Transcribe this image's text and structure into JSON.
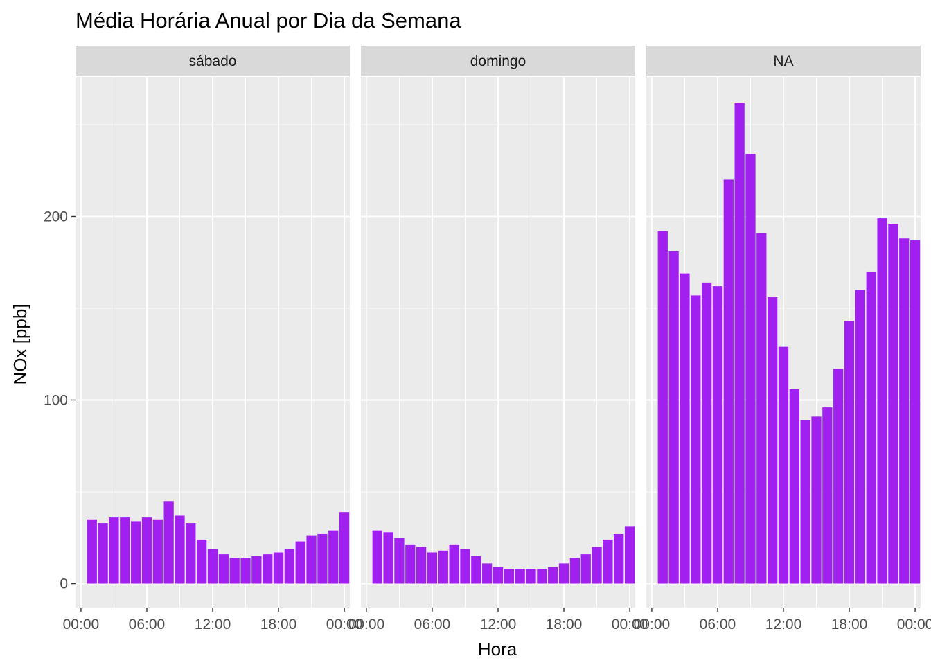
{
  "chart_data": {
    "type": "bar",
    "title": "Média Horária Anual por Dia da Semana",
    "xlabel": "Hora",
    "ylabel": "NOx [ppb]",
    "bar_color": "#A020F0",
    "panel_background": "#EBEBEB",
    "strip_background": "#D9D9D9",
    "grid": true,
    "legend": "none",
    "xlim": [
      -0.5,
      24.5
    ],
    "ylim": [
      -13,
      276
    ],
    "x_ticks": [
      {
        "value": 0,
        "label": "00:00"
      },
      {
        "value": 6,
        "label": "06:00"
      },
      {
        "value": 12,
        "label": "12:00"
      },
      {
        "value": 18,
        "label": "18:00"
      },
      {
        "value": 24,
        "label": "00:00"
      }
    ],
    "y_ticks": [
      {
        "value": 0,
        "label": "0"
      },
      {
        "value": 100,
        "label": "100"
      },
      {
        "value": 200,
        "label": "200"
      }
    ],
    "x": [
      1,
      2,
      3,
      4,
      5,
      6,
      7,
      8,
      9,
      10,
      11,
      12,
      13,
      14,
      15,
      16,
      17,
      18,
      19,
      20,
      21,
      22,
      23,
      24
    ],
    "panels": [
      {
        "name": "sábado",
        "values": [
          35,
          33,
          36,
          36,
          34,
          36,
          35,
          45,
          37,
          33,
          24,
          19,
          16,
          14,
          14,
          15,
          16,
          17,
          19,
          23,
          26,
          27,
          29,
          39
        ]
      },
      {
        "name": "domingo",
        "values": [
          29,
          28,
          25,
          21,
          20,
          17,
          18,
          21,
          19,
          15,
          11,
          9,
          8,
          8,
          8,
          8,
          9,
          11,
          14,
          16,
          20,
          24,
          27,
          31
        ]
      },
      {
        "name": "NA",
        "values": [
          192,
          181,
          169,
          157,
          164,
          162,
          220,
          262,
          234,
          191,
          156,
          129,
          106,
          89,
          91,
          96,
          117,
          143,
          160,
          170,
          199,
          196,
          188,
          187
        ]
      }
    ]
  }
}
